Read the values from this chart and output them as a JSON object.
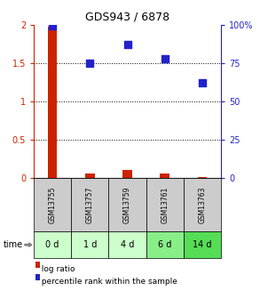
{
  "title": "GDS943 / 6878",
  "samples": [
    "GSM13755",
    "GSM13757",
    "GSM13759",
    "GSM13761",
    "GSM13763"
  ],
  "time_labels": [
    "0 d",
    "1 d",
    "4 d",
    "6 d",
    "14 d"
  ],
  "log_ratio": [
    1.97,
    0.055,
    0.1,
    0.055,
    0.018
  ],
  "percentile": [
    99,
    75,
    87,
    78,
    62
  ],
  "bar_color": "#cc2200",
  "dot_color": "#2222cc",
  "ylim_left": [
    0,
    2
  ],
  "ylim_right": [
    0,
    100
  ],
  "yticks_left": [
    0,
    0.5,
    1.0,
    1.5,
    2.0
  ],
  "ytick_labels_left": [
    "0",
    "0.5",
    "1",
    "1.5",
    "2"
  ],
  "yticks_right": [
    0,
    25,
    50,
    75,
    100
  ],
  "ytick_labels_right": [
    "0",
    "25",
    "50",
    "75",
    "100%"
  ],
  "hline_positions": [
    0.5,
    1.0,
    1.5
  ],
  "sample_box_color": "#cccccc",
  "time_box_colors": [
    "#ccffcc",
    "#ccffcc",
    "#ccffcc",
    "#88ee88",
    "#55dd55"
  ],
  "legend_log_ratio_label": "log ratio",
  "legend_percentile_label": "percentile rank within the sample",
  "bar_width": 0.25,
  "dot_size": 40,
  "title_fontsize": 9
}
